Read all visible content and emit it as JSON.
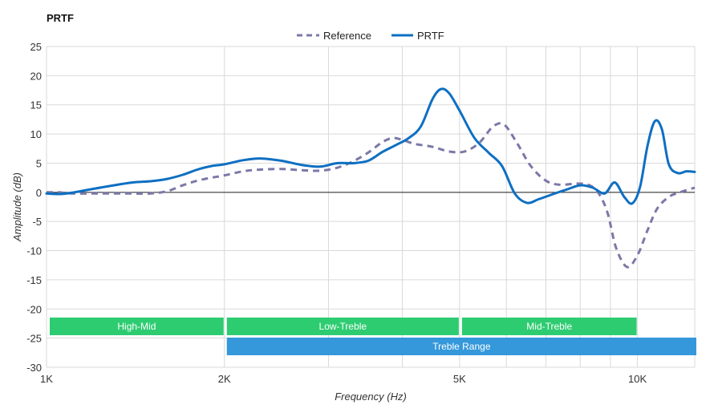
{
  "chart_data": {
    "type": "line",
    "title": "PRTF",
    "xlabel": "Frequency (Hz)",
    "ylabel": "Amplitude (dB)",
    "x_scale": "log",
    "xlim": [
      1000,
      12500
    ],
    "ylim": [
      -30,
      25
    ],
    "x_ticks": [
      {
        "value": 1000,
        "label": "1K"
      },
      {
        "value": 2000,
        "label": "2K"
      },
      {
        "value": 5000,
        "label": "5K"
      },
      {
        "value": 10000,
        "label": "10K"
      }
    ],
    "x_minor_gridlines": [
      3000,
      4000,
      6000,
      7000,
      8000,
      9000
    ],
    "y_ticks": [
      25,
      20,
      15,
      10,
      5,
      0,
      -5,
      -10,
      -15,
      -20,
      -25,
      -30
    ],
    "grid": true,
    "legend_position": "top-center",
    "series": [
      {
        "name": "Reference",
        "style": "dashed",
        "color": "#7b78a8",
        "x": [
          1000,
          1050,
          1100,
          1200,
          1300,
          1400,
          1500,
          1600,
          1700,
          1800,
          1900,
          2000,
          2150,
          2300,
          2500,
          2700,
          2900,
          3100,
          3300,
          3500,
          3700,
          3850,
          4000,
          4200,
          4500,
          4800,
          5100,
          5400,
          5700,
          5950,
          6250,
          6600,
          7000,
          7400,
          7900,
          8300,
          8600,
          8900,
          9200,
          9600,
          10000,
          10400,
          10800,
          11300,
          11800,
          12500
        ],
        "y": [
          0,
          0,
          -0.2,
          -0.2,
          -0.2,
          -0.2,
          -0.2,
          0.2,
          1.2,
          2.0,
          2.5,
          2.9,
          3.6,
          3.9,
          4.0,
          3.8,
          3.7,
          4.2,
          5.3,
          6.8,
          8.6,
          9.3,
          9.0,
          8.3,
          7.8,
          7.0,
          7.0,
          8.5,
          11.3,
          11.6,
          8.5,
          4.5,
          2.0,
          1.3,
          1.5,
          1.2,
          -0.2,
          -3.5,
          -9.5,
          -12.8,
          -10.8,
          -6.5,
          -2.8,
          -0.8,
          0,
          0.8
        ]
      },
      {
        "name": "PRTF",
        "style": "solid",
        "color": "#0e6fc2",
        "x": [
          1000,
          1050,
          1100,
          1200,
          1300,
          1400,
          1500,
          1600,
          1700,
          1800,
          1900,
          2000,
          2150,
          2300,
          2500,
          2700,
          2900,
          3100,
          3300,
          3500,
          3700,
          3900,
          4100,
          4300,
          4500,
          4650,
          4800,
          5000,
          5300,
          5600,
          5900,
          6200,
          6500,
          6800,
          7200,
          7600,
          8000,
          8400,
          8800,
          9150,
          9500,
          9800,
          10100,
          10400,
          10700,
          11000,
          11300,
          11700,
          12100,
          12500
        ],
        "y": [
          -0.2,
          -0.3,
          -0.1,
          0.6,
          1.2,
          1.7,
          1.9,
          2.3,
          3.0,
          3.9,
          4.5,
          4.8,
          5.5,
          5.8,
          5.4,
          4.7,
          4.4,
          5.0,
          5.0,
          5.4,
          6.9,
          8.1,
          9.3,
          11.3,
          16.0,
          17.7,
          17.0,
          14.0,
          9.3,
          6.8,
          4.5,
          -0.2,
          -1.8,
          -1.2,
          -0.3,
          0.5,
          1.2,
          0.8,
          -0.2,
          1.7,
          -0.8,
          -1.9,
          0.9,
          8.0,
          12.2,
          10.8,
          4.8,
          3.3,
          3.6,
          3.5
        ]
      }
    ],
    "bands": [
      {
        "label": "High-Mid",
        "from": 1000,
        "to": 2000,
        "row": 1,
        "color": "#2ecc71"
      },
      {
        "label": "Low-Treble",
        "from": 2000,
        "to": 5000,
        "row": 1,
        "color": "#2ecc71"
      },
      {
        "label": "Mid-Treble",
        "from": 5000,
        "to": 10000,
        "row": 1,
        "color": "#2ecc71"
      },
      {
        "label": "Treble Range",
        "from": 2000,
        "to": 12500,
        "row": 2,
        "color": "#3498db"
      }
    ]
  }
}
